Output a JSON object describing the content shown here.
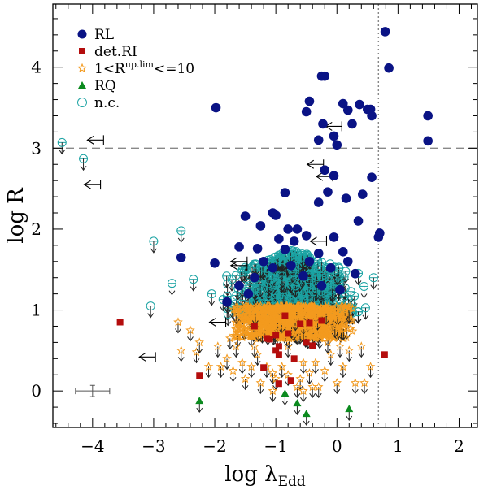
{
  "chart_data": {
    "type": "scatter",
    "xlabel": "log λ",
    "xlabel_sub": "Edd",
    "ylabel": "log R",
    "xlim": [
      -4.65,
      2.3
    ],
    "ylim": [
      -0.45,
      4.78
    ],
    "x_ticks": [
      -4,
      -3,
      -2,
      -1,
      0,
      1,
      2
    ],
    "y_ticks": [
      0,
      1,
      2,
      3,
      4
    ],
    "x_tick_labels": [
      "−4",
      "−3",
      "−2",
      "−1",
      "0",
      "1",
      "2"
    ],
    "y_tick_labels": [
      "0",
      "1",
      "2",
      "3",
      "4"
    ],
    "reference_lines": {
      "horizontal_dashed_y": 3.0,
      "vertical_dotted_x": 0.68
    },
    "legend": {
      "placement": "top-left",
      "entries": [
        {
          "key": "RL",
          "label": "RL",
          "marker": "filled-circle",
          "color": "#0a1385"
        },
        {
          "key": "detRI",
          "label": "det.RI",
          "marker": "filled-square",
          "color": "#b40d0d"
        },
        {
          "key": "R_up",
          "label_prefix": "1<R",
          "label_sup": "up.lim",
          "label_suffix": "<=10",
          "marker": "open-star",
          "color": "#f39a1e"
        },
        {
          "key": "RQ",
          "label": "RQ",
          "marker": "filled-triangle",
          "color": "#0b8a1e"
        },
        {
          "key": "nc",
          "label": "n.c.",
          "marker": "open-circle",
          "color": "#1ba3a3"
        }
      ]
    },
    "colors": {
      "RL": "#0a1385",
      "detRI": "#b40d0d",
      "R_up": "#f39a1e",
      "RQ": "#0b8a1e",
      "nc": "#1ba3a3",
      "arrow": "#222222",
      "ref_line": "#888888"
    },
    "series": [
      {
        "name": "RL",
        "points": [
          [
            0.79,
            4.44
          ],
          [
            0.85,
            3.99
          ],
          [
            -0.2,
            3.89
          ],
          [
            -0.25,
            3.89
          ],
          [
            -1.98,
            3.5
          ],
          [
            -0.45,
            3.58
          ],
          [
            -0.5,
            3.45
          ],
          [
            0.1,
            3.55
          ],
          [
            0.18,
            3.47
          ],
          [
            0.37,
            3.54
          ],
          [
            0.5,
            3.48
          ],
          [
            0.55,
            3.48
          ],
          [
            0.57,
            3.4
          ],
          [
            1.49,
            3.4
          ],
          [
            -0.23,
            3.3
          ],
          [
            -0.05,
            3.15
          ],
          [
            0.25,
            3.3
          ],
          [
            -0.3,
            3.1
          ],
          [
            0.0,
            3.04
          ],
          [
            1.49,
            3.09
          ],
          [
            -0.2,
            2.73
          ],
          [
            -0.05,
            2.66
          ],
          [
            0.57,
            2.64
          ],
          [
            -0.15,
            2.46
          ],
          [
            0.42,
            2.43
          ],
          [
            -0.85,
            2.45
          ],
          [
            -0.3,
            2.33
          ],
          [
            0.15,
            2.38
          ],
          [
            -1.5,
            2.16
          ],
          [
            -1.05,
            2.2
          ],
          [
            -1.0,
            2.17
          ],
          [
            -0.8,
            2.0
          ],
          [
            -0.65,
            2.0
          ],
          [
            -1.25,
            2.04
          ],
          [
            0.35,
            2.1
          ],
          [
            -0.95,
            1.88
          ],
          [
            -0.7,
            1.85
          ],
          [
            -0.5,
            1.92
          ],
          [
            -0.05,
            1.9
          ],
          [
            0.7,
            1.95
          ],
          [
            0.68,
            1.9
          ],
          [
            -1.6,
            1.78
          ],
          [
            -2.0,
            1.58
          ],
          [
            -1.3,
            1.76
          ],
          [
            -0.85,
            1.75
          ],
          [
            -0.3,
            1.7
          ],
          [
            0.1,
            1.72
          ],
          [
            -2.55,
            1.65
          ],
          [
            -1.2,
            1.6
          ],
          [
            -1.05,
            1.52
          ],
          [
            -0.75,
            1.55
          ],
          [
            -0.45,
            1.6
          ],
          [
            -0.1,
            1.52
          ],
          [
            0.18,
            1.6
          ],
          [
            -1.6,
            1.3
          ],
          [
            -1.35,
            1.4
          ],
          [
            -0.55,
            1.42
          ],
          [
            0.3,
            1.45
          ],
          [
            -1.8,
            1.1
          ],
          [
            -1.45,
            1.2
          ],
          [
            -0.25,
            1.3
          ],
          [
            0.05,
            1.25
          ]
        ]
      },
      {
        "name": "detRI",
        "points": [
          [
            -3.55,
            0.85
          ],
          [
            0.78,
            0.45
          ],
          [
            -2.25,
            0.19
          ],
          [
            -1.15,
            0.65
          ],
          [
            -1.1,
            0.64
          ],
          [
            -1.0,
            0.69
          ],
          [
            -0.85,
            0.93
          ],
          [
            -0.8,
            0.71
          ],
          [
            -0.95,
            0.55
          ],
          [
            -1.0,
            0.5
          ],
          [
            -0.95,
            0.45
          ],
          [
            -1.2,
            0.29
          ],
          [
            -0.95,
            0.09
          ],
          [
            -0.75,
            0.13
          ],
          [
            -0.5,
            0.6
          ],
          [
            -0.4,
            0.56
          ],
          [
            -0.25,
            0.87
          ],
          [
            -0.45,
            0.84
          ],
          [
            -0.6,
            0.83
          ],
          [
            -1.35,
            0.8
          ],
          [
            -0.7,
            0.4
          ]
        ]
      },
      {
        "name": "RQ",
        "points": [
          [
            -2.25,
            -0.12
          ],
          [
            -0.85,
            -0.03
          ],
          [
            -0.5,
            -0.28
          ],
          [
            0.2,
            -0.22
          ],
          [
            -0.65,
            -0.15
          ]
        ]
      },
      {
        "name": "nc_isolated",
        "points": [
          [
            -4.5,
            3.07
          ],
          [
            -4.15,
            2.87
          ],
          [
            -3.0,
            1.85
          ],
          [
            -2.55,
            1.98
          ],
          [
            -2.7,
            1.33
          ],
          [
            -2.35,
            1.38
          ],
          [
            0.6,
            1.4
          ],
          [
            -2.05,
            1.2
          ],
          [
            0.35,
            0.98
          ],
          [
            -3.05,
            1.05
          ]
        ]
      }
    ],
    "cluster_cyan": {
      "description": "dense cloud of n.c. open circles with upper-limit arrows",
      "x_range": [
        -2.0,
        0.6
      ],
      "y_range": [
        0.95,
        1.75
      ],
      "count": 900
    },
    "cluster_orange": {
      "description": "dense cloud of 1<R up.lim<=10 open stars with upper-limit arrows",
      "x_range": [
        -1.75,
        0.3
      ],
      "y_range": [
        0.65,
        1.05
      ],
      "count": 1200
    },
    "upper_limit_stars": {
      "points": [
        [
          -2.55,
          0.5
        ],
        [
          -2.3,
          0.48
        ],
        [
          -2.1,
          0.3
        ],
        [
          -1.9,
          0.3
        ],
        [
          -1.8,
          0.4
        ],
        [
          -1.7,
          0.25
        ],
        [
          -1.55,
          0.35
        ],
        [
          -1.4,
          0.3
        ],
        [
          -1.3,
          0.45
        ],
        [
          -1.5,
          0.15
        ],
        [
          -1.25,
          0.1
        ],
        [
          -1.05,
          0.22
        ],
        [
          -0.9,
          0.3
        ],
        [
          -0.8,
          0.2
        ],
        [
          -0.6,
          0.15
        ],
        [
          -0.55,
          0.35
        ],
        [
          -0.4,
          0.05
        ],
        [
          -0.35,
          0.35
        ],
        [
          -0.2,
          0.25
        ],
        [
          -0.1,
          0.45
        ],
        [
          0.0,
          0.1
        ],
        [
          0.1,
          0.3
        ],
        [
          0.3,
          0.1
        ],
        [
          0.45,
          0.1
        ],
        [
          0.55,
          0.3
        ],
        [
          -1.95,
          0.55
        ],
        [
          -2.4,
          0.75
        ],
        [
          -2.25,
          0.6
        ],
        [
          -1.65,
          0.55
        ],
        [
          -1.15,
          0.3
        ],
        [
          -0.65,
          0.05
        ],
        [
          -0.3,
          0.05
        ],
        [
          0.2,
          0.5
        ],
        [
          0.4,
          0.55
        ],
        [
          -2.6,
          0.85
        ],
        [
          -1.0,
          0.15
        ],
        [
          -0.45,
          0.22
        ],
        [
          0.05,
          0.55
        ],
        [
          -1.75,
          0.65
        ],
        [
          -0.8,
          0.55
        ],
        [
          -1.35,
          0.55
        ],
        [
          -0.15,
          0.6
        ],
        [
          -0.55,
          0.0
        ],
        [
          -1.05,
          0.0
        ]
      ]
    },
    "left_arrows": [
      [
        -3.9,
        3.1
      ],
      [
        -3.95,
        2.55
      ],
      [
        -1.55,
        1.6
      ],
      [
        -1.55,
        1.55
      ],
      [
        -1.9,
        0.85
      ],
      [
        -3.05,
        0.42
      ],
      [
        -0.3,
        2.8
      ],
      [
        -0.15,
        2.65
      ],
      [
        0.0,
        3.27
      ],
      [
        -0.25,
        1.85
      ]
    ],
    "error_bar_example": {
      "x": -4.0,
      "y": 0.0,
      "x_err": 0.28,
      "y_err": 0.07
    }
  }
}
